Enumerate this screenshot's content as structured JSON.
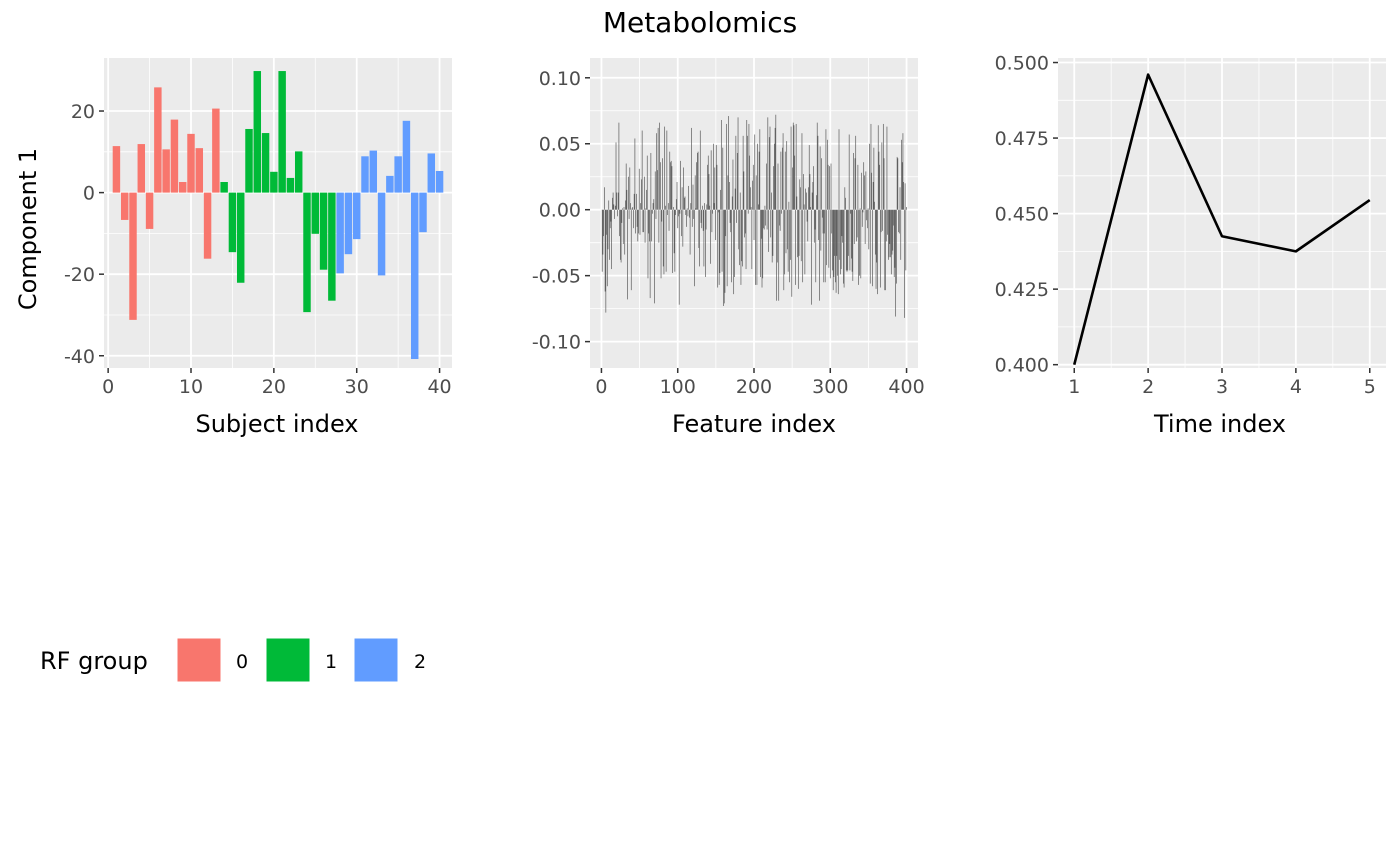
{
  "title": "Metabolomics",
  "colors": {
    "group_0": "#F8766D",
    "group_1": "#00BA38",
    "group_2": "#619CFF",
    "panel_bg": "#EBEBEB",
    "grid": "#FFFFFF",
    "feature_bar": "#595959",
    "line": "#000000"
  },
  "legend": {
    "title": "RF group",
    "items": [
      {
        "label": "0",
        "color": "#F8766D"
      },
      {
        "label": "1",
        "color": "#00BA38"
      },
      {
        "label": "2",
        "color": "#619CFF"
      }
    ]
  },
  "chart_data": [
    {
      "type": "bar",
      "title": "",
      "xlabel": "Subject index",
      "ylabel": "Component 1",
      "xlim": [
        -0.5,
        41.5
      ],
      "ylim": [
        -43,
        33
      ],
      "xticks": [
        0,
        10,
        20,
        30,
        40
      ],
      "xtick_labels": [
        "0",
        "10",
        "20",
        "30",
        "40"
      ],
      "yticks": [
        -40,
        -20,
        0,
        20
      ],
      "ytick_labels": [
        "-40",
        "-20",
        "0",
        "20"
      ],
      "x": [
        1,
        2,
        3,
        4,
        5,
        6,
        7,
        8,
        9,
        10,
        11,
        12,
        13,
        14,
        15,
        16,
        17,
        18,
        19,
        20,
        21,
        22,
        23,
        24,
        25,
        26,
        27,
        28,
        29,
        30,
        31,
        32,
        33,
        34,
        35,
        36,
        37,
        38,
        39,
        40
      ],
      "values": [
        11.4,
        -6.7,
        -31.2,
        11.9,
        -8.9,
        25.8,
        10.6,
        17.9,
        2.6,
        14.4,
        10.9,
        -16.2,
        20.6,
        2.6,
        -14.6,
        -22.1,
        15.6,
        29.8,
        14.6,
        5.1,
        29.8,
        3.6,
        10.1,
        -29.3,
        -10.1,
        -18.9,
        -26.5,
        -19.8,
        -15.1,
        -11.4,
        8.9,
        10.3,
        -20.3,
        4.1,
        8.9,
        17.6,
        -40.8,
        -9.7,
        9.6,
        5.3
      ],
      "groups": [
        0,
        0,
        0,
        0,
        0,
        0,
        0,
        0,
        0,
        0,
        0,
        0,
        0,
        1,
        1,
        1,
        1,
        1,
        1,
        1,
        1,
        1,
        1,
        1,
        1,
        1,
        1,
        2,
        2,
        2,
        2,
        2,
        2,
        2,
        2,
        2,
        2,
        2,
        2,
        2
      ]
    },
    {
      "type": "bar",
      "title": "",
      "xlabel": "Feature index",
      "ylabel": "",
      "xlim": [
        -15,
        415
      ],
      "ylim": [
        -0.12,
        0.115
      ],
      "xticks": [
        0,
        100,
        200,
        300,
        400
      ],
      "xtick_labels": [
        "0",
        "100",
        "200",
        "300",
        "400"
      ],
      "yticks": [
        -0.1,
        -0.05,
        0.0,
        0.05,
        0.1
      ],
      "ytick_labels": [
        "-0.10",
        "-0.05",
        "0.00",
        "0.05",
        "0.10"
      ],
      "x_range": [
        1,
        400
      ],
      "values": [
        -0.047,
        -0.034,
        -0.02,
        0.017,
        -0.062,
        -0.078,
        -0.019,
        -0.058,
        -0.03,
        0.007,
        -0.038,
        -0.014,
        -0.009,
        -0.045,
        0.009,
        0.013,
        0.004,
        -0.007,
        0.003,
        0.051,
        0.013,
        -0.005,
        0.013,
        0.066,
        -0.02,
        -0.038,
        -0.04,
        -0.01,
        0.001,
        -0.026,
        0.002,
        -0.034,
        0.007,
        0.035,
        0.015,
        -0.068,
        0.025,
        -0.007,
        0.032,
        0.005,
        -0.061,
        0.001,
        0.002,
        -0.014,
        0.012,
        0.054,
        -0.018,
        0.012,
        -0.013,
        -0.024,
        -0.018,
        0.031,
        -0.019,
        0.005,
        0.023,
        0.06,
        -0.017,
        -0.017,
        0.025,
        -0.025,
        0.001,
        0.015,
        0.041,
        -0.052,
        -0.018,
        -0.024,
        -0.067,
        0.043,
        -0.024,
        -0.003,
        0.005,
        0.008,
        -0.071,
        0.029,
        -0.007,
        0.058,
        0.03,
        0.062,
        -0.025,
        0.066,
        0.036,
        -0.052,
        -0.009,
        0.039,
        -0.043,
        -0.049,
        0.063,
        0.003,
        -0.047,
        0.06,
        -0.004,
        0.005,
        -0.016,
        0.044,
        0.036,
        0.037,
        0.033,
        -0.048,
        0.002,
        -0.033,
        -0.047,
        -0.004,
        0.008,
        0.021,
        -0.014,
        -0.005,
        -0.072,
        -0.003,
        0.037,
        -0.02,
        0.017,
        -0.028,
        0.032,
        0.009,
        0.01,
        -0.004,
        -0.013,
        0.001,
        -0.005,
        0.018,
        -0.006,
        -0.034,
        0.005,
        0.062,
        -0.013,
        0.019,
        -0.007,
        -0.058,
        0.026,
        0.001,
        0.036,
        0.043,
        0.044,
        -0.029,
        -0.043,
        0.06,
        -0.01,
        -0.014,
        0.003,
        -0.016,
        -0.043,
        0.005,
        -0.051,
        -0.015,
        0.004,
        0.034,
        0.041,
        0.027,
        0.003,
        -0.041,
        0.045,
        -0.017,
        -0.003,
        0.05,
        0.005,
        0.032,
        -0.023,
        0.049,
        0.034,
        -0.059,
        -0.002,
        -0.057,
        -0.048,
        0.015,
        0.068,
        -0.047,
        0.047,
        -0.073,
        -0.071,
        -0.063,
        -0.02,
        0.065,
        -0.058,
        0.026,
        0.071,
        0.021,
        -0.01,
        -0.017,
        -0.055,
        0.01,
        0.038,
        -0.064,
        -0.051,
        0.016,
        0.056,
        -0.01,
        0.043,
        0.07,
        -0.03,
        -0.042,
        0.013,
        -0.057,
        -0.039,
        -0.043,
        0.056,
        0.029,
        -0.021,
        -0.018,
        -0.045,
        0.068,
        0.056,
        -0.003,
        0.065,
        0.041,
        0.017,
        0.002,
        -0.045,
        0.022,
        0.034,
        -0.023,
        0.057,
        -0.057,
        0.026,
        -0.057,
        0.05,
        0.004,
        0.044,
        0.061,
        -0.051,
        -0.022,
        -0.059,
        -0.052,
        -0.014,
        -0.015,
        0.003,
        -0.012,
        0.035,
        -0.015,
        0.07,
        -0.032,
        0.055,
        0.063,
        -0.021,
        0.013,
        -0.04,
        -0.035,
        0.033,
        0.05,
        0.062,
        0.072,
        -0.069,
        -0.04,
        0.035,
        -0.069,
        -0.012,
        -0.016,
        0.044,
        -0.003,
        0.047,
        0.058,
        -0.061,
        -0.049,
        0.044,
        -0.033,
        0.052,
        -0.03,
        -0.047,
        0.006,
        -0.055,
        -0.038,
        0.063,
        -0.066,
        0.032,
        0.066,
        0.064,
        0.041,
        -0.057,
        0.065,
        0.01,
        -0.036,
        -0.06,
        -0.035,
        0.023,
        0.017,
        -0.039,
        0.058,
        -0.055,
        0.027,
        0.004,
        -0.049,
        0.016,
        0.013,
        -0.009,
        -0.024,
        0.017,
        0.049,
        0.027,
        0.002,
        -0.072,
        0.013,
        0.021,
        0.033,
        -0.025,
        -0.015,
        -0.055,
        0.011,
        0.066,
        0.056,
        -0.023,
        -0.069,
        0.048,
        -0.031,
        0.039,
        -0.006,
        -0.018,
        -0.055,
        -0.018,
        -0.055,
        0.061,
        -0.042,
        0.053,
        0.034,
        -0.044,
        0.033,
        -0.052,
        0.035,
        -0.018,
        -0.046,
        -0.061,
        -0.051,
        -0.035,
        -0.055,
        -0.063,
        -0.035,
        -0.05,
        -0.064,
        0.061,
        -0.038,
        -0.049,
        -0.045,
        -0.02,
        -0.025,
        -0.056,
        -0.059,
        0.017,
        0.009,
        -0.046,
        -0.047,
        -0.046,
        -0.035,
        0.057,
        -0.046,
        -0.003,
        -0.037,
        -0.047,
        -0.054,
        0.043,
        -0.026,
        0.039,
        0.056,
        -0.024,
        -0.021,
        0.034,
        -0.057,
        -0.05,
        0.001,
        -0.052,
        0.028,
        -0.013,
        -0.002,
        0.036,
        0.026,
        -0.026,
        0.029,
        -0.008,
        -0.014,
        0.001,
        -0.03,
        0.05,
        -0.056,
        0.065,
        0.028,
        -0.058,
        0.021,
        0.047,
        0.006,
        -0.034,
        -0.06,
        -0.04,
        -0.064,
        0.064,
        0.044,
        0.034,
        -0.059,
        -0.017,
        0.051,
        -0.016,
        0.065,
        0.039,
        -0.061,
        -0.061,
        -0.024,
        0.063,
        -0.019,
        -0.038,
        -0.036,
        -0.026,
        -0.036,
        -0.049,
        -0.034,
        -0.031,
        -0.012,
        -0.051,
        -0.044,
        -0.081,
        -0.056,
        0.04,
        0.039,
        -0.017,
        -0.018,
        0.017,
        -0.038,
        0.053,
        0.036,
        0.058,
        0.021,
        -0.082,
        0.02,
        -0.046,
        0.002
      ]
    },
    {
      "type": "line",
      "title": "",
      "xlabel": "Time index",
      "ylabel": "",
      "xlim": [
        0.78,
        5.22
      ],
      "ylim": [
        0.3989,
        0.5015
      ],
      "xticks": [
        1,
        2,
        3,
        4,
        5
      ],
      "xtick_labels": [
        "1",
        "2",
        "3",
        "4",
        "5"
      ],
      "yticks": [
        0.4,
        0.425,
        0.45,
        0.475,
        0.5
      ],
      "ytick_labels": [
        "0.400",
        "0.425",
        "0.450",
        "0.475",
        "0.500"
      ],
      "x": [
        1,
        2,
        3,
        4,
        5
      ],
      "y": [
        0.4,
        0.496,
        0.4425,
        0.4375,
        0.4545
      ]
    }
  ]
}
